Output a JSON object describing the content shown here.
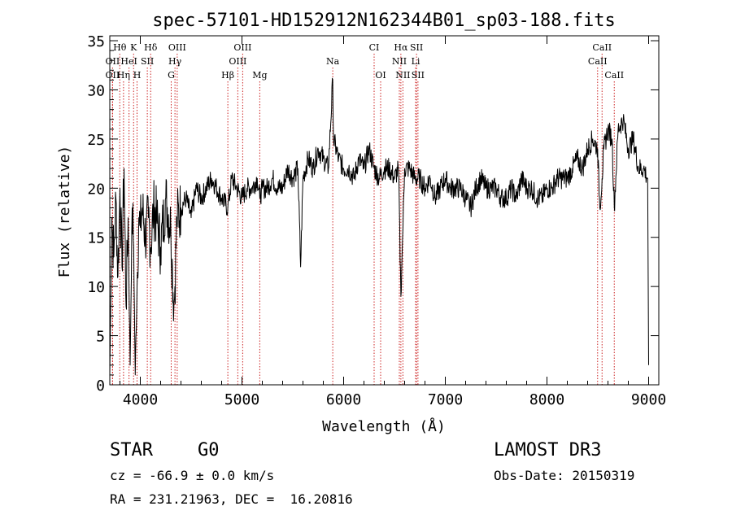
{
  "chart_data": {
    "type": "line",
    "title": "spec-57101-HD152912N162344B01_sp03-188.fits",
    "xlabel": "Wavelength (Å)",
    "ylabel": "Flux (relative)",
    "xlim": [
      3700,
      9100
    ],
    "ylim": [
      0,
      35.5
    ],
    "x_ticks": [
      4000,
      5000,
      6000,
      7000,
      8000,
      9000
    ],
    "y_ticks": [
      0,
      5,
      10,
      15,
      20,
      25,
      30,
      35
    ],
    "series": [
      {
        "name": "spectrum",
        "x": [
          3700,
          3720,
          3740,
          3760,
          3780,
          3800,
          3820,
          3840,
          3860,
          3880,
          3900,
          3920,
          3935,
          3950,
          3968,
          3985,
          4000,
          4020,
          4050,
          4080,
          4102,
          4130,
          4160,
          4200,
          4250,
          4300,
          4330,
          4340,
          4360,
          4400,
          4450,
          4500,
          4550,
          4600,
          4650,
          4700,
          4750,
          4800,
          4861,
          4900,
          4950,
          5000,
          5050,
          5100,
          5150,
          5175,
          5200,
          5250,
          5300,
          5350,
          5400,
          5450,
          5500,
          5550,
          5577,
          5600,
          5650,
          5700,
          5750,
          5800,
          5850,
          5893,
          5900,
          5950,
          6000,
          6050,
          6100,
          6150,
          6200,
          6250,
          6300,
          6350,
          6400,
          6450,
          6500,
          6540,
          6563,
          6580,
          6600,
          6650,
          6700,
          6750,
          6800,
          6850,
          6900,
          6950,
          7000,
          7050,
          7100,
          7150,
          7200,
          7250,
          7300,
          7350,
          7400,
          7450,
          7500,
          7550,
          7600,
          7650,
          7700,
          7750,
          7800,
          7850,
          7900,
          7950,
          8000,
          8050,
          8100,
          8150,
          8200,
          8250,
          8300,
          8350,
          8400,
          8450,
          8498,
          8520,
          8542,
          8560,
          8600,
          8640,
          8662,
          8700,
          8750,
          8800,
          8850,
          8900,
          8950,
          8990,
          9000
        ],
        "y": [
          1,
          17,
          13,
          19,
          11,
          20,
          12,
          22,
          8,
          17,
          2,
          18,
          14,
          1,
          10,
          17,
          16,
          18,
          15,
          17,
          14,
          18,
          17,
          14,
          19,
          16,
          8,
          10,
          17,
          18,
          19,
          17,
          20,
          19,
          20,
          21,
          20,
          19,
          18,
          21,
          20,
          19,
          20,
          20,
          21,
          19,
          20,
          20,
          21,
          20,
          20,
          22,
          21,
          22,
          12,
          21,
          23,
          22,
          24,
          23,
          22,
          31,
          25,
          23,
          22,
          22,
          21,
          23,
          22,
          24,
          22,
          21,
          22,
          22,
          21,
          22,
          9,
          15,
          22,
          22,
          21,
          21,
          20,
          21,
          19,
          20,
          21,
          20,
          20,
          20,
          19,
          18,
          20,
          21,
          20,
          20,
          20,
          19,
          19,
          20,
          19,
          21,
          20,
          20,
          19,
          19,
          20,
          20,
          21,
          21,
          21,
          22,
          23,
          22,
          24,
          25,
          24,
          18,
          21,
          24,
          26,
          25,
          18,
          26,
          27,
          24,
          25,
          22,
          22,
          21,
          2
        ]
      }
    ],
    "line_marks": [
      {
        "label": "Hθ",
        "x": 3798,
        "row": 1
      },
      {
        "label": "K",
        "x": 3934,
        "row": 1
      },
      {
        "label": "Hδ",
        "x": 4102,
        "row": 1
      },
      {
        "label": "OIII",
        "x": 4363,
        "row": 1
      },
      {
        "label": "OIII",
        "x": 5007,
        "row": 1
      },
      {
        "label": "CI",
        "x": 6300,
        "row": 1
      },
      {
        "label": "Hα",
        "x": 6563,
        "row": 1
      },
      {
        "label": "SII",
        "x": 6717,
        "row": 1
      },
      {
        "label": "CaII",
        "x": 8542,
        "row": 1
      },
      {
        "label": "OII",
        "x": 3727,
        "row": 2
      },
      {
        "label": "HeI",
        "x": 3889,
        "row": 2
      },
      {
        "label": "SII",
        "x": 4069,
        "row": 2
      },
      {
        "label": "Hγ",
        "x": 4341,
        "row": 2
      },
      {
        "label": "OIII",
        "x": 4959,
        "row": 2
      },
      {
        "label": "Na",
        "x": 5893,
        "row": 2
      },
      {
        "label": "NII",
        "x": 6548,
        "row": 2
      },
      {
        "label": "Li",
        "x": 6708,
        "row": 2
      },
      {
        "label": "CaII",
        "x": 8498,
        "row": 2
      },
      {
        "label": "OII",
        "x": 3727,
        "row": 3
      },
      {
        "label": "Hη",
        "x": 3835,
        "row": 3
      },
      {
        "label": "H",
        "x": 3968,
        "row": 3
      },
      {
        "label": "G",
        "x": 4304,
        "row": 3
      },
      {
        "label": "Hβ",
        "x": 4861,
        "row": 3
      },
      {
        "label": "Mg",
        "x": 5175,
        "row": 3
      },
      {
        "label": "OI",
        "x": 6364,
        "row": 3
      },
      {
        "label": "NII",
        "x": 6583,
        "row": 3
      },
      {
        "label": "SII",
        "x": 6731,
        "row": 3
      },
      {
        "label": "CaII",
        "x": 8662,
        "row": 3
      }
    ],
    "colors": {
      "spectrum": "#000000",
      "line_marks": "#cc2222",
      "axes": "#000000"
    }
  },
  "info": {
    "class": "STAR",
    "subclass": "G0",
    "survey": "LAMOST DR3",
    "velocity": "cz = -66.9 ± 0.0 km/s",
    "obs_date": "Obs-Date: 20150319",
    "coords": "RA = 231.21963, DEC =  16.20816"
  }
}
